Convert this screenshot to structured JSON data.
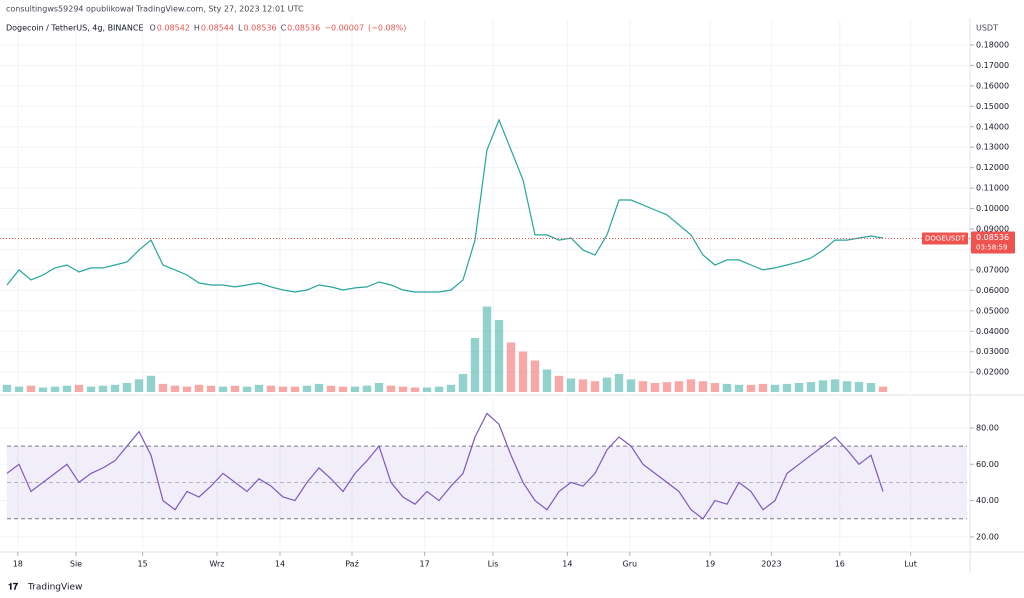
{
  "header": {
    "author_line": "consultingws59294 opublikował TradingView.com, Sty 27, 2023 12:01 UTC"
  },
  "footer": {
    "brand": "TradingView"
  },
  "chart_data": [
    {
      "type": "line",
      "title": "Dogecoin / TetherUS, 4g, BINANCE",
      "ohlc": [
        {
          "key": "O",
          "value": 0.08542
        },
        {
          "key": "H",
          "value": 0.08544
        },
        {
          "key": "L",
          "value": 0.08536
        },
        {
          "key": "C",
          "value": 0.08536
        }
      ],
      "change": {
        "value": -7e-05,
        "label": "−0.00007"
      },
      "change_pct": {
        "value": -0.08,
        "label": "(−0.08%)"
      },
      "y_axis_label": "USDT",
      "x": [
        0,
        1,
        2,
        3,
        4,
        5,
        6,
        7,
        8,
        9,
        10,
        11,
        12,
        13,
        14,
        15,
        16,
        17,
        18,
        19,
        20,
        21,
        22,
        23,
        24,
        25,
        26,
        27,
        28,
        29,
        30,
        31,
        32,
        33,
        34,
        35,
        36,
        37,
        38,
        39,
        40,
        41,
        42,
        43,
        44,
        45,
        46,
        47,
        48,
        49,
        50,
        51,
        52,
        53,
        54,
        55,
        56,
        57,
        58,
        59,
        60,
        61,
        62,
        63,
        64,
        65,
        66,
        67,
        68,
        69,
        70,
        71,
        72,
        73
      ],
      "series": [
        {
          "name": "DOGEUSDT",
          "color": "#26a69a",
          "values": [
            0.0626,
            0.07,
            0.0651,
            0.0675,
            0.071,
            0.0724,
            0.069,
            0.071,
            0.071,
            0.0724,
            0.0739,
            0.0797,
            0.0846,
            0.0724,
            0.07,
            0.0675,
            0.0636,
            0.0626,
            0.0626,
            0.0617,
            0.0626,
            0.0636,
            0.0617,
            0.0602,
            0.0592,
            0.0602,
            0.0626,
            0.0617,
            0.0602,
            0.0612,
            0.0617,
            0.0641,
            0.0626,
            0.0602,
            0.0592,
            0.0592,
            0.0592,
            0.0602,
            0.0651,
            0.0846,
            0.1287,
            0.1433,
            0.1287,
            0.114,
            0.0871,
            0.0871,
            0.0846,
            0.0856,
            0.0797,
            0.0773,
            0.0871,
            0.1042,
            0.1042,
            0.1018,
            0.0993,
            0.0969,
            0.092,
            0.0871,
            0.0773,
            0.0724,
            0.0749,
            0.0749,
            0.0724,
            0.07,
            0.071,
            0.0724,
            0.0739,
            0.0758,
            0.0797,
            0.0846,
            0.0846,
            0.0856,
            0.0866,
            0.0856
          ]
        }
      ],
      "volume": {
        "color_up": "#26a69a",
        "color_down": "#ef5350",
        "values": [
          8,
          6,
          7,
          5,
          6,
          7,
          8,
          6,
          7,
          8,
          10,
          14,
          18,
          9,
          7,
          6,
          8,
          7,
          6,
          7,
          6,
          8,
          7,
          6,
          6,
          7,
          9,
          7,
          6,
          6,
          7,
          10,
          7,
          6,
          5,
          5,
          6,
          8,
          20,
          60,
          95,
          80,
          55,
          45,
          35,
          25,
          18,
          15,
          14,
          12,
          16,
          20,
          14,
          12,
          10,
          11,
          12,
          14,
          12,
          10,
          9,
          8,
          8,
          9,
          8,
          9,
          10,
          11,
          13,
          14,
          12,
          11,
          10,
          6
        ]
      },
      "vlim": [
        0,
        100
      ],
      "last_price": {
        "symbol": "DOGEUSDT",
        "value": 0.08536,
        "countdown": "03:58:59"
      },
      "xlim": [
        0,
        80
      ],
      "xticks": [
        {
          "value": 0.9,
          "label": "18"
        },
        {
          "value": 5.75,
          "label": "Sie"
        },
        {
          "value": 11.3,
          "label": "15"
        },
        {
          "value": 17.5,
          "label": "Wrz"
        },
        {
          "value": 22.75,
          "label": "14"
        },
        {
          "value": 28.75,
          "label": "Paź"
        },
        {
          "value": 34.8,
          "label": "17"
        },
        {
          "value": 40.5,
          "label": "Lis"
        },
        {
          "value": 46.7,
          "label": "14"
        },
        {
          "value": 51.9,
          "label": "Gru"
        },
        {
          "value": 58.6,
          "label": "19"
        },
        {
          "value": 63.7,
          "label": "2023"
        },
        {
          "value": 69.4,
          "label": "16"
        },
        {
          "value": 75.3,
          "label": "Lut"
        }
      ],
      "ylim": [
        0.0103,
        0.1922
      ],
      "yticks": [
        {
          "value": 0.02,
          "label": "0.02000"
        },
        {
          "value": 0.03,
          "label": "0.03000"
        },
        {
          "value": 0.04,
          "label": "0.04000"
        },
        {
          "value": 0.05,
          "label": "0.05000"
        },
        {
          "value": 0.06,
          "label": "0.06000"
        },
        {
          "value": 0.07,
          "label": "0.07000"
        },
        {
          "value": 0.08,
          "label": "0.08000"
        },
        {
          "value": 0.09,
          "label": "0.09000"
        },
        {
          "value": 0.1,
          "label": "0.10000"
        },
        {
          "value": 0.11,
          "label": "0.11000"
        },
        {
          "value": 0.12,
          "label": "0.12000"
        },
        {
          "value": 0.13,
          "label": "0.13000"
        },
        {
          "value": 0.14,
          "label": "0.14000"
        },
        {
          "value": 0.15,
          "label": "0.15000"
        },
        {
          "value": 0.16,
          "label": "0.16000"
        },
        {
          "value": 0.17,
          "label": "0.17000"
        },
        {
          "value": 0.18,
          "label": "0.18000"
        }
      ],
      "grid": true
    },
    {
      "type": "line",
      "x": [
        0,
        1,
        2,
        3,
        4,
        5,
        6,
        7,
        8,
        9,
        10,
        11,
        12,
        13,
        14,
        15,
        16,
        17,
        18,
        19,
        20,
        21,
        22,
        23,
        24,
        25,
        26,
        27,
        28,
        29,
        30,
        31,
        32,
        33,
        34,
        35,
        36,
        37,
        38,
        39,
        40,
        41,
        42,
        43,
        44,
        45,
        46,
        47,
        48,
        49,
        50,
        51,
        52,
        53,
        54,
        55,
        56,
        57,
        58,
        59,
        60,
        61,
        62,
        63,
        64,
        65,
        66,
        67,
        68,
        69,
        70,
        71,
        72,
        73
      ],
      "series": [
        {
          "color": "#7e57c2",
          "values": [
            55,
            60,
            45,
            50,
            55,
            60,
            50,
            55,
            58,
            62,
            70,
            78,
            65,
            40,
            35,
            45,
            42,
            48,
            55,
            50,
            45,
            52,
            48,
            42,
            40,
            50,
            58,
            52,
            45,
            55,
            62,
            70,
            50,
            42,
            38,
            45,
            40,
            48,
            55,
            75,
            88,
            82,
            65,
            50,
            40,
            35,
            45,
            50,
            48,
            55,
            68,
            75,
            70,
            60,
            55,
            50,
            45,
            35,
            30,
            40,
            38,
            50,
            45,
            35,
            40,
            55,
            60,
            65,
            70,
            75,
            68,
            60,
            65,
            45
          ]
        }
      ],
      "bands": [
        30,
        70
      ],
      "midline": 50,
      "band_color": "#7e57c2",
      "xlim": [
        0,
        80
      ],
      "ylim": [
        12.8,
        96.5
      ],
      "yticks": [
        {
          "value": 20,
          "label": "20.00"
        },
        {
          "value": 40,
          "label": "40.00"
        },
        {
          "value": 60,
          "label": "60.00"
        },
        {
          "value": 80,
          "label": "80.00"
        }
      ],
      "grid": true
    }
  ]
}
